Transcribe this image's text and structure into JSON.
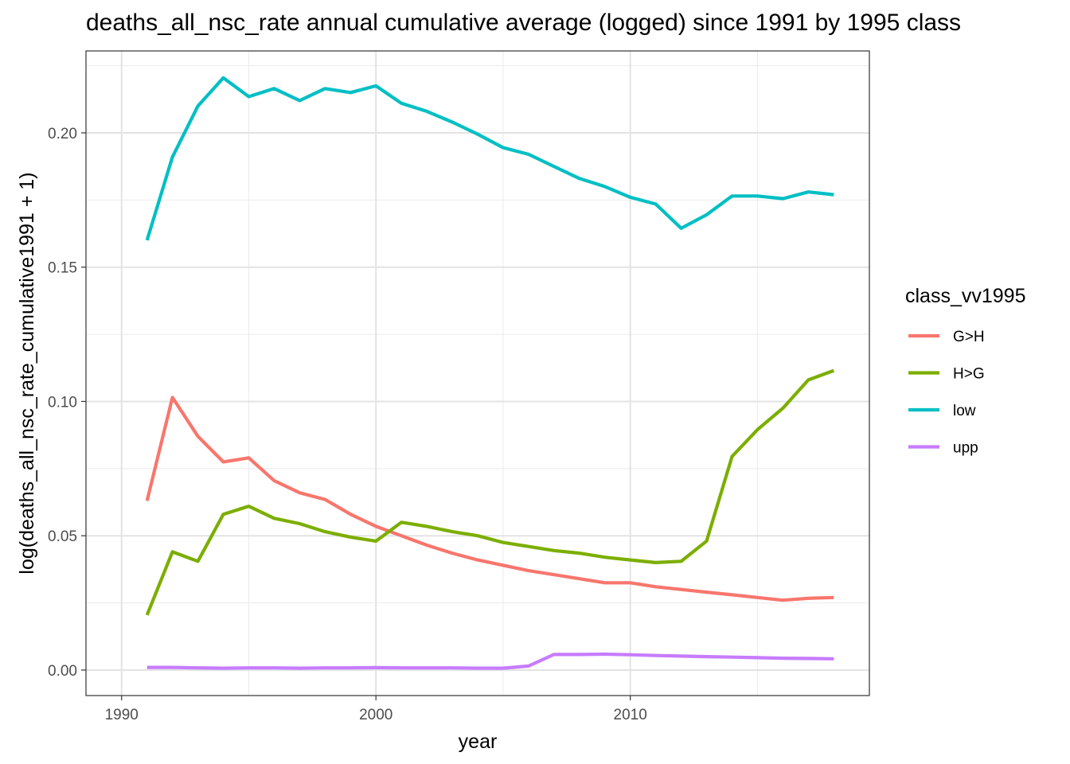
{
  "chart_data": {
    "type": "line",
    "title": "deaths_all_nsc_rate annual cumulative average (logged) since 1991 by 1995 class",
    "xlabel": "year",
    "ylabel": "log(deaths_all_nsc_rate_cumulative1991 + 1)",
    "xlim": [
      1988.6,
      2019.4
    ],
    "ylim": [
      -0.0095,
      0.2305
    ],
    "x_ticks": [
      1990,
      2000,
      2010
    ],
    "y_ticks": [
      0.0,
      0.05,
      0.1,
      0.15,
      0.2
    ],
    "x_tick_labels": [
      "1990",
      "2000",
      "2010"
    ],
    "y_tick_labels": [
      "0.00",
      "0.05",
      "0.10",
      "0.15",
      "0.20"
    ],
    "grid": true,
    "legend": {
      "title": "class_vv1995",
      "position": "right"
    },
    "x": [
      1991,
      1992,
      1993,
      1994,
      1995,
      1996,
      1997,
      1998,
      1999,
      2000,
      2001,
      2002,
      2003,
      2004,
      2005,
      2006,
      2007,
      2008,
      2009,
      2010,
      2011,
      2012,
      2013,
      2014,
      2015,
      2016,
      2017,
      2018
    ],
    "series": [
      {
        "name": "G>H",
        "color": "#F8766D",
        "values": [
          0.063,
          0.1015,
          0.087,
          0.0775,
          0.079,
          0.0705,
          0.066,
          0.0635,
          0.058,
          0.0535,
          0.05,
          0.0465,
          0.0435,
          0.041,
          0.039,
          0.037,
          0.0355,
          0.034,
          0.0325,
          0.0325,
          0.031,
          0.03,
          0.029,
          0.028,
          0.027,
          0.026,
          0.0267,
          0.027
        ]
      },
      {
        "name": "H>G",
        "color": "#7CAE00",
        "values": [
          0.0205,
          0.044,
          0.0405,
          0.058,
          0.061,
          0.0565,
          0.0545,
          0.0515,
          0.0495,
          0.048,
          0.055,
          0.0535,
          0.0515,
          0.05,
          0.0475,
          0.046,
          0.0445,
          0.0435,
          0.042,
          0.041,
          0.04,
          0.0405,
          0.048,
          0.0795,
          0.0895,
          0.0975,
          0.108,
          0.1115
        ]
      },
      {
        "name": "low",
        "color": "#00BFC4",
        "values": [
          0.16,
          0.191,
          0.21,
          0.2205,
          0.2135,
          0.2165,
          0.212,
          0.2165,
          0.215,
          0.2175,
          0.211,
          0.208,
          0.204,
          0.1995,
          0.1945,
          0.192,
          0.1875,
          0.183,
          0.18,
          0.176,
          0.1735,
          0.1645,
          0.1695,
          0.1765,
          0.1765,
          0.1755,
          0.178,
          0.177
        ]
      },
      {
        "name": "upp",
        "color": "#C77CFF",
        "values": [
          0.001,
          0.001,
          0.0008,
          0.0007,
          0.0008,
          0.0008,
          0.0007,
          0.0008,
          0.0008,
          0.0009,
          0.0008,
          0.0008,
          0.0008,
          0.0007,
          0.0007,
          0.0015,
          0.0058,
          0.0058,
          0.0059,
          0.0057,
          0.0054,
          0.0052,
          0.005,
          0.0048,
          0.0046,
          0.0044,
          0.0043,
          0.0042
        ]
      }
    ]
  }
}
